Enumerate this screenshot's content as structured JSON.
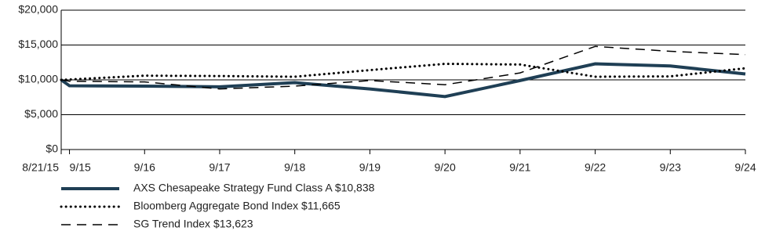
{
  "chart_data": {
    "type": "line",
    "x": [
      "8/21/15",
      "9/15",
      "9/16",
      "9/17",
      "9/18",
      "9/19",
      "9/20",
      "9/21",
      "9/22",
      "9/23",
      "9/24"
    ],
    "series": [
      {
        "name": "AXS Chesapeake Strategy Fund Class A $10,838",
        "color": "#1f3f55",
        "style": "solid",
        "values": [
          10000,
          9150,
          9100,
          9000,
          9600,
          8700,
          7600,
          9900,
          12300,
          12000,
          10838
        ]
      },
      {
        "name": "Bloomberg Aggregate Bond Index $11,665",
        "color": "#000000",
        "style": "dotted",
        "values": [
          10000,
          10050,
          10600,
          10550,
          10450,
          11400,
          12300,
          12200,
          10450,
          10500,
          11665
        ]
      },
      {
        "name": "SG Trend Index $13,623",
        "color": "#000000",
        "style": "dashed",
        "values": [
          10000,
          9800,
          9700,
          8700,
          9100,
          9900,
          9300,
          11000,
          14800,
          14100,
          13623
        ]
      }
    ],
    "ylim": [
      0,
      20000
    ],
    "yticks": [
      {
        "value": 0,
        "label": "$0"
      },
      {
        "value": 5000,
        "label": "$5,000"
      },
      {
        "value": 10000,
        "label": "$10,000"
      },
      {
        "value": 15000,
        "label": "$15,000"
      },
      {
        "value": 20000,
        "label": "$20,000"
      }
    ],
    "grid": true
  }
}
